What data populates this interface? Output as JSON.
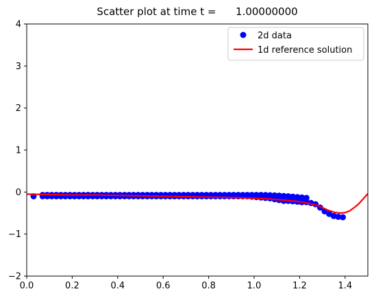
{
  "chart_data": {
    "type": "scatter",
    "title": "Scatter plot at time t =      1.00000000",
    "xlabel": "",
    "ylabel": "",
    "xlim": [
      0.0,
      1.5
    ],
    "ylim": [
      -2,
      4
    ],
    "xticks": [
      0.0,
      0.2,
      0.4,
      0.6,
      0.8,
      1.0,
      1.2,
      1.4
    ],
    "xtick_labels": [
      "0.0",
      "0.2",
      "0.4",
      "0.6",
      "0.8",
      "1.0",
      "1.2",
      "1.4"
    ],
    "yticks": [
      -2,
      -1,
      0,
      1,
      2,
      3,
      4
    ],
    "ytick_labels": [
      "−2",
      "−1",
      "0",
      "1",
      "2",
      "3",
      "4"
    ],
    "grid": false,
    "legend_position": "top-right",
    "series": [
      {
        "name": "2d data",
        "kind": "scatter",
        "color": "#0000ff",
        "x": [
          0.03,
          0.07,
          0.09,
          0.11,
          0.13,
          0.15,
          0.17,
          0.19,
          0.21,
          0.23,
          0.25,
          0.27,
          0.29,
          0.31,
          0.33,
          0.35,
          0.37,
          0.39,
          0.41,
          0.43,
          0.45,
          0.47,
          0.49,
          0.51,
          0.53,
          0.55,
          0.57,
          0.59,
          0.61,
          0.63,
          0.65,
          0.67,
          0.69,
          0.71,
          0.73,
          0.75,
          0.77,
          0.79,
          0.81,
          0.83,
          0.85,
          0.87,
          0.89,
          0.91,
          0.93,
          0.95,
          0.97,
          0.99,
          1.01,
          1.03,
          1.05,
          1.07,
          1.09,
          1.11,
          1.13,
          1.15,
          1.17,
          1.19,
          1.21,
          1.23,
          1.25,
          1.27,
          1.29,
          1.31,
          1.33,
          1.35,
          1.37,
          1.39
        ],
        "y": [
          -0.1,
          -0.1,
          -0.1,
          -0.1,
          -0.1,
          -0.1,
          -0.1,
          -0.1,
          -0.1,
          -0.1,
          -0.1,
          -0.1,
          -0.1,
          -0.1,
          -0.1,
          -0.1,
          -0.1,
          -0.1,
          -0.1,
          -0.1,
          -0.1,
          -0.1,
          -0.1,
          -0.1,
          -0.1,
          -0.1,
          -0.1,
          -0.1,
          -0.1,
          -0.1,
          -0.1,
          -0.1,
          -0.1,
          -0.1,
          -0.1,
          -0.1,
          -0.1,
          -0.1,
          -0.1,
          -0.1,
          -0.1,
          -0.1,
          -0.1,
          -0.1,
          -0.1,
          -0.1,
          -0.1,
          -0.11,
          -0.12,
          -0.13,
          -0.14,
          -0.15,
          -0.17,
          -0.19,
          -0.21,
          -0.21,
          -0.22,
          -0.23,
          -0.24,
          -0.24,
          -0.26,
          -0.29,
          -0.37,
          -0.46,
          -0.52,
          -0.57,
          -0.59,
          -0.6
        ],
        "band": {
          "x": [
            0.07,
            0.25,
            0.45,
            0.65,
            0.85,
            0.95,
            1.03,
            1.09,
            1.15,
            1.19,
            1.23,
            1.25
          ],
          "y": [
            -0.07,
            -0.07,
            -0.07,
            -0.07,
            -0.07,
            -0.07,
            -0.07,
            -0.08,
            -0.1,
            -0.12,
            -0.14,
            -0.17
          ]
        }
      },
      {
        "name": "1d reference solution",
        "kind": "line",
        "color": "#ff0000",
        "x": [
          0.0,
          0.1,
          0.2,
          0.3,
          0.4,
          0.5,
          0.6,
          0.7,
          0.8,
          0.9,
          1.0,
          1.05,
          1.1,
          1.15,
          1.2,
          1.25,
          1.28,
          1.3,
          1.32,
          1.34,
          1.36,
          1.38,
          1.4,
          1.42,
          1.44,
          1.46,
          1.48,
          1.5
        ],
        "y": [
          -0.05,
          -0.06,
          -0.07,
          -0.07,
          -0.08,
          -0.09,
          -0.1,
          -0.11,
          -0.12,
          -0.13,
          -0.15,
          -0.16,
          -0.18,
          -0.2,
          -0.23,
          -0.28,
          -0.32,
          -0.37,
          -0.42,
          -0.46,
          -0.49,
          -0.5,
          -0.49,
          -0.45,
          -0.37,
          -0.28,
          -0.16,
          -0.04
        ]
      }
    ]
  }
}
